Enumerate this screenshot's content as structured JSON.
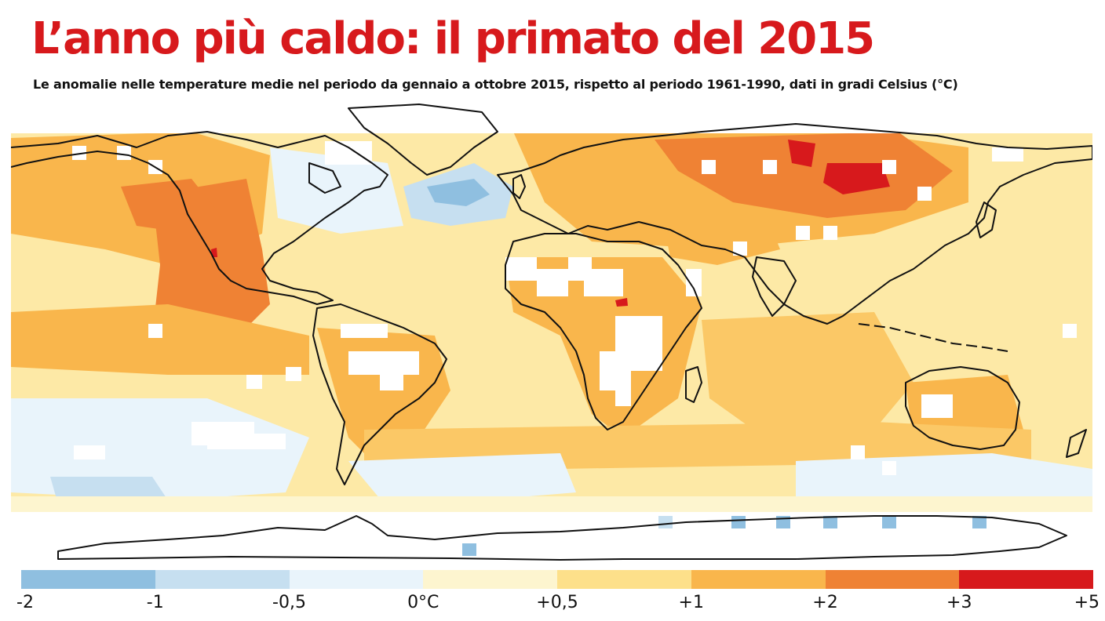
{
  "title": "L’anno più caldo: il primato del 2015",
  "subtitle": "Le anomalie nelle temperature medie nel periodo da gennaio a ottobre 2015, rispetto al periodo 1961-1990, dati in gradi Celsius (°C)",
  "legend": {
    "labels": [
      "-2",
      "-1",
      "-0,5",
      "0°C",
      "+0,5",
      "+1",
      "+2",
      "+3",
      "+5"
    ],
    "colors": [
      "#8fbfe0",
      "#c6dff0",
      "#e9f4fb",
      "#fdf5cf",
      "#fde08a",
      "#f9b64c",
      "#ef8234",
      "#d7191c"
    ]
  },
  "map": {
    "background_color": "#fde9a6",
    "coastline_color": "#111111",
    "no_data_color": "#ffffff"
  }
}
